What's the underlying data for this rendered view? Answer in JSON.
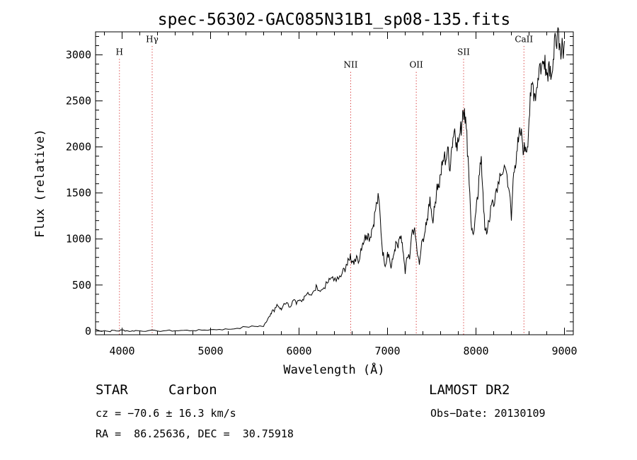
{
  "chart_data": {
    "type": "line",
    "title": "spec-56302-GAC085N31B1_sp08-135.fits",
    "xlabel": "Wavelength (Å)",
    "ylabel": "Flux (relative)",
    "xlim": [
      3700,
      9100
    ],
    "ylim": [
      -40,
      3250
    ],
    "xticks": [
      4000,
      5000,
      6000,
      7000,
      8000,
      9000
    ],
    "yticks": [
      0,
      500,
      1000,
      1500,
      2000,
      2500,
      3000
    ],
    "grid": false,
    "line_color": "#000000",
    "marker_color": "#cc0000",
    "spectral_lines": [
      {
        "label": "H",
        "wavelength": 3970,
        "label_y": 3000
      },
      {
        "label": "Hγ",
        "wavelength": 4340,
        "label_y": 3140
      },
      {
        "label": "NII",
        "wavelength": 6584,
        "label_y": 2860
      },
      {
        "label": "OII",
        "wavelength": 7325,
        "label_y": 2860
      },
      {
        "label": "SII",
        "wavelength": 7860,
        "label_y": 3000
      },
      {
        "label": "CaII",
        "wavelength": 8542,
        "label_y": 3140
      }
    ],
    "series": [
      {
        "x": [
          3700,
          3750,
          3800,
          3850,
          3900,
          3950,
          4000,
          4050,
          4100,
          4150,
          4200,
          4300,
          4400,
          4500,
          4600,
          4700,
          4800,
          4900,
          5000,
          5100,
          5200,
          5300,
          5400,
          5500,
          5550,
          5600,
          5620,
          5650,
          5680,
          5700,
          5720,
          5750,
          5780,
          5800,
          5830,
          5860,
          5900,
          5940,
          5970,
          6000,
          6030,
          6060,
          6100,
          6140,
          6180,
          6200,
          6240,
          6280,
          6320,
          6350,
          6380,
          6420,
          6460,
          6500,
          6520,
          6540,
          6560,
          6580,
          6600,
          6620,
          6650,
          6680,
          6700,
          6720,
          6740,
          6760,
          6780,
          6800,
          6820,
          6840,
          6860,
          6880,
          6900,
          6920,
          6940,
          6960,
          6980,
          7000,
          7020,
          7040,
          7060,
          7080,
          7100,
          7120,
          7140,
          7160,
          7180,
          7200,
          7220,
          7250,
          7280,
          7300,
          7320,
          7340,
          7360,
          7380,
          7400,
          7420,
          7440,
          7460,
          7480,
          7500,
          7520,
          7540,
          7560,
          7580,
          7600,
          7620,
          7640,
          7660,
          7680,
          7700,
          7720,
          7740,
          7760,
          7780,
          7800,
          7820,
          7840,
          7850,
          7870,
          7890,
          7910,
          7930,
          7950,
          7970,
          8000,
          8020,
          8040,
          8060,
          8080,
          8100,
          8120,
          8140,
          8160,
          8180,
          8200,
          8230,
          8260,
          8290,
          8320,
          8350,
          8380,
          8400,
          8420,
          8440,
          8460,
          8480,
          8500,
          8520,
          8540,
          8560,
          8580,
          8600,
          8620,
          8640,
          8660,
          8680,
          8700,
          8720,
          8740,
          8760,
          8780,
          8800,
          8820,
          8840,
          8860,
          8880,
          8900,
          8920,
          8940,
          8960,
          8980,
          9000
        ],
        "y": [
          20,
          0,
          5,
          -5,
          8,
          0,
          12,
          3,
          -2,
          6,
          2,
          5,
          0,
          5,
          3,
          8,
          5,
          10,
          15,
          18,
          20,
          30,
          45,
          50,
          55,
          50,
          90,
          140,
          190,
          230,
          210,
          290,
          250,
          230,
          300,
          310,
          260,
          340,
          290,
          330,
          320,
          380,
          420,
          390,
          440,
          490,
          430,
          470,
          520,
          560,
          590,
          540,
          600,
          680,
          640,
          720,
          780,
          840,
          760,
          720,
          820,
          760,
          900,
          960,
          1000,
          1040,
          1060,
          1000,
          1100,
          1150,
          1300,
          1390,
          1450,
          1200,
          900,
          780,
          720,
          860,
          810,
          680,
          780,
          880,
          960,
          900,
          1030,
          960,
          840,
          620,
          800,
          780,
          1100,
          1100,
          1000,
          820,
          720,
          900,
          1000,
          1060,
          1150,
          1300,
          1460,
          1250,
          1230,
          1400,
          1600,
          1560,
          1700,
          1800,
          1900,
          1850,
          2000,
          1750,
          1950,
          2100,
          2200,
          2050,
          2050,
          2150,
          2250,
          2400,
          2420,
          2200,
          1900,
          1500,
          1100,
          1050,
          1300,
          1430,
          1700,
          1900,
          1500,
          1100,
          1050,
          1200,
          1250,
          1400,
          1350,
          1550,
          1600,
          1700,
          1800,
          1700,
          1500,
          1200,
          1650,
          1800,
          1950,
          2050,
          2150,
          2100,
          1950,
          2000,
          2000,
          2300,
          2550,
          2700,
          2580,
          2600,
          2750,
          2900,
          2860,
          2900,
          3000,
          2780,
          2900,
          2880,
          2800,
          2950,
          3200,
          3250,
          3050,
          2950,
          3100,
          3150
        ]
      }
    ]
  },
  "info": {
    "object_class": "STAR",
    "subclass": "Carbon",
    "survey": "LAMOST DR2",
    "redshift": "cz = −70.6 ± 16.3 km/s",
    "obs_date": "Obs−Date: 20130109",
    "coords": "RA =  86.25636, DEC =  30.75918"
  }
}
